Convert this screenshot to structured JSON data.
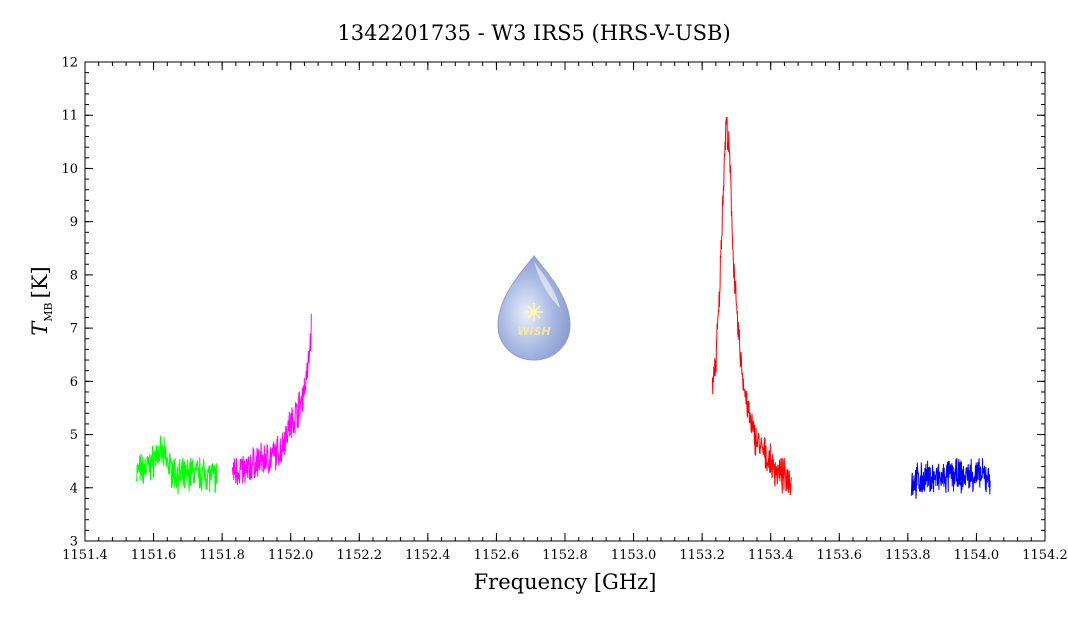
{
  "chart_data": {
    "type": "line",
    "title": "1342201735 - W3 IRS5 (HRS-V-USB)",
    "xlabel": "Frequency [GHz]",
    "ylabel": {
      "symbol": "T",
      "subscript": "MB",
      "unit": "[K]"
    },
    "xlim": [
      1151.4,
      1154.2
    ],
    "ylim": [
      3,
      12
    ],
    "xticks": [
      "1151.4",
      "1151.6",
      "1151.8",
      "1152.0",
      "1152.2",
      "1152.4",
      "1152.6",
      "1152.8",
      "1153.0",
      "1153.2",
      "1153.4",
      "1153.6",
      "1153.8",
      "1154.0",
      "1154.2"
    ],
    "yticks": [
      "3",
      "4",
      "5",
      "6",
      "7",
      "8",
      "9",
      "10",
      "11",
      "12"
    ],
    "grid": false,
    "series": [
      {
        "color": "#00ff00",
        "points": [
          [
            1151.55,
            4.3
          ],
          [
            1151.57,
            4.35
          ],
          [
            1151.59,
            4.4
          ],
          [
            1151.61,
            4.65
          ],
          [
            1151.63,
            4.6
          ],
          [
            1151.65,
            4.35
          ],
          [
            1151.67,
            4.25
          ],
          [
            1151.69,
            4.2
          ],
          [
            1151.71,
            4.3
          ],
          [
            1151.73,
            4.25
          ],
          [
            1151.75,
            4.3
          ],
          [
            1151.77,
            4.2
          ],
          [
            1151.785,
            4.2
          ]
        ]
      },
      {
        "color": "#ff00ff",
        "points": [
          [
            1151.83,
            4.3
          ],
          [
            1151.85,
            4.35
          ],
          [
            1151.87,
            4.3
          ],
          [
            1151.89,
            4.45
          ],
          [
            1151.91,
            4.5
          ],
          [
            1151.93,
            4.55
          ],
          [
            1151.95,
            4.6
          ],
          [
            1151.97,
            4.7
          ],
          [
            1151.99,
            5.1
          ],
          [
            1152.01,
            5.3
          ],
          [
            1152.03,
            5.6
          ],
          [
            1152.05,
            6.2
          ],
          [
            1152.06,
            7.0
          ]
        ]
      },
      {
        "color": "#ff0000",
        "points": [
          [
            1153.23,
            5.9
          ],
          [
            1153.24,
            6.4
          ],
          [
            1153.25,
            7.5
          ],
          [
            1153.26,
            9.4
          ],
          [
            1153.27,
            10.9
          ],
          [
            1153.28,
            10.2
          ],
          [
            1153.29,
            8.5
          ],
          [
            1153.3,
            7.3
          ],
          [
            1153.31,
            6.6
          ],
          [
            1153.32,
            6.0
          ],
          [
            1153.33,
            5.6
          ],
          [
            1153.34,
            5.25
          ],
          [
            1153.35,
            5.0
          ],
          [
            1153.36,
            4.9
          ],
          [
            1153.37,
            4.75
          ],
          [
            1153.38,
            4.65
          ],
          [
            1153.39,
            4.55
          ],
          [
            1153.4,
            4.45
          ],
          [
            1153.41,
            4.35
          ],
          [
            1153.42,
            4.3
          ],
          [
            1153.43,
            4.25
          ],
          [
            1153.44,
            4.2
          ],
          [
            1153.45,
            4.2
          ],
          [
            1153.46,
            4.15
          ]
        ]
      },
      {
        "color": "#0000ff",
        "points": [
          [
            1153.81,
            4.1
          ],
          [
            1153.84,
            4.15
          ],
          [
            1153.87,
            4.2
          ],
          [
            1153.9,
            4.15
          ],
          [
            1153.93,
            4.25
          ],
          [
            1153.96,
            4.2
          ],
          [
            1153.99,
            4.25
          ],
          [
            1154.02,
            4.2
          ],
          [
            1154.04,
            4.2
          ]
        ]
      }
    ]
  },
  "logo": {
    "text": "WISH"
  }
}
